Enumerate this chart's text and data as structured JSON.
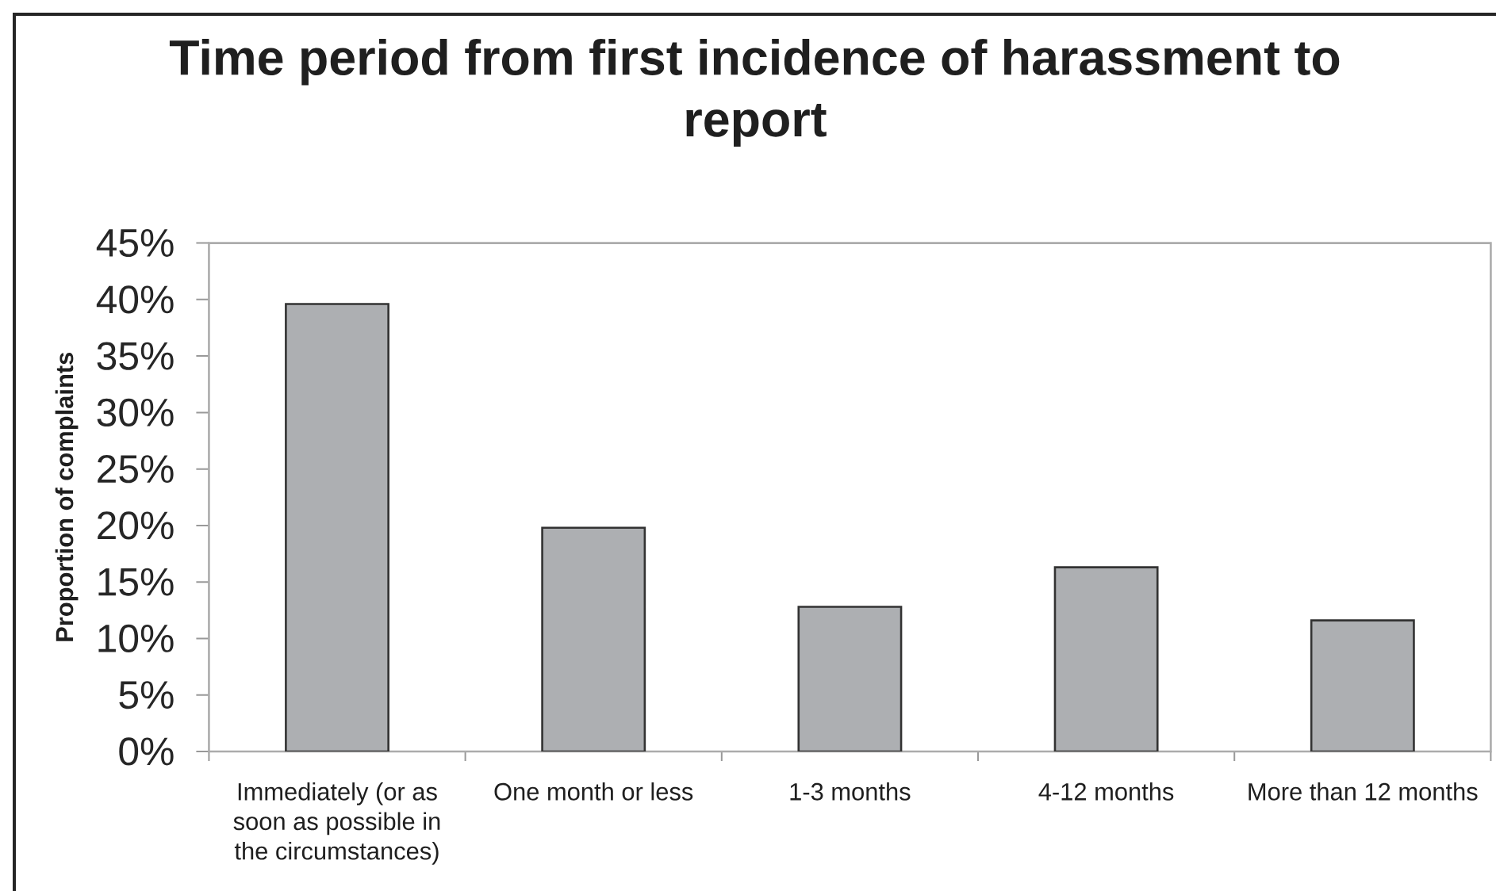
{
  "chart_data": {
    "type": "bar",
    "title": "Time period from first incidence of harassment to report",
    "ylabel": "Proportion of complaints",
    "categories": [
      "Immediately (or as soon as possible in the circumstances)",
      "One month or less",
      "1-3 months",
      "4-12 months",
      "More than 12 months"
    ],
    "values": [
      39.6,
      19.8,
      12.8,
      16.3,
      11.6
    ],
    "color": "#adafb2",
    "ylim": [
      0,
      45
    ],
    "yticks": [
      {
        "value": 0,
        "label": "0%"
      },
      {
        "value": 5,
        "label": "5%"
      },
      {
        "value": 10,
        "label": "10%"
      },
      {
        "value": 15,
        "label": "15%"
      },
      {
        "value": 20,
        "label": "20%"
      },
      {
        "value": 25,
        "label": "25%"
      },
      {
        "value": 30,
        "label": "30%"
      },
      {
        "value": 35,
        "label": "35%"
      },
      {
        "value": 40,
        "label": "40%"
      },
      {
        "value": 45,
        "label": "45%"
      }
    ]
  }
}
